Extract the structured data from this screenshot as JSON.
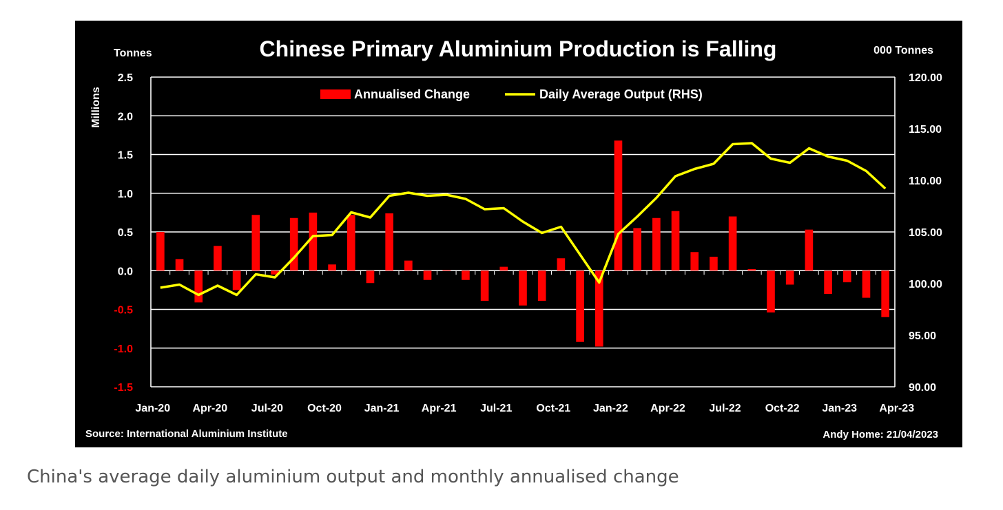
{
  "caption": "China's average daily aluminium output and monthly annualised change",
  "chart_data": {
    "type": "bar",
    "title": "Chinese Primary Aluminium Production is Falling",
    "left_unit_label": "Tonnes",
    "left_axis_multiplier_label": "Millions",
    "right_unit_label": "000 Tonnes",
    "source": "Source: International Aluminium Institute",
    "credit": "Andy Home: 21/04/2023",
    "grid": true,
    "legend_position": "top-center",
    "colors": {
      "bars": "#ff0000",
      "line": "#ffff00",
      "background": "#000000",
      "negative_ticks": "#ff0000"
    },
    "x_tick_labels": [
      "Jan-20",
      "Apr-20",
      "Jul-20",
      "Oct-20",
      "Jan-21",
      "Apr-21",
      "Jul-21",
      "Oct-21",
      "Jan-22",
      "Apr-22",
      "Jul-22",
      "Oct-22",
      "Jan-23",
      "Apr-23"
    ],
    "left_ticks": [
      "2.5",
      "2.0",
      "1.5",
      "1.0",
      "0.5",
      "0.0",
      "-0.5",
      "-1.0",
      "-1.5"
    ],
    "right_ticks": [
      "120.00",
      "115.00",
      "110.00",
      "105.00",
      "100.00",
      "95.00",
      "90.00"
    ],
    "ylim_left": [
      -1.5,
      2.5
    ],
    "ylim_right": [
      90,
      120
    ],
    "categories": [
      "Jan-20",
      "Feb-20",
      "Mar-20",
      "Apr-20",
      "May-20",
      "Jun-20",
      "Jul-20",
      "Aug-20",
      "Sep-20",
      "Oct-20",
      "Nov-20",
      "Dec-20",
      "Jan-21",
      "Feb-21",
      "Mar-21",
      "Apr-21",
      "May-21",
      "Jun-21",
      "Jul-21",
      "Aug-21",
      "Sep-21",
      "Oct-21",
      "Nov-21",
      "Dec-21",
      "Jan-22",
      "Feb-22",
      "Mar-22",
      "Apr-22",
      "May-22",
      "Jun-22",
      "Jul-22",
      "Aug-22",
      "Sep-22",
      "Oct-22",
      "Nov-22",
      "Dec-22",
      "Jan-23",
      "Feb-23",
      "Mar-23"
    ],
    "series": [
      {
        "name": "Annualised Change",
        "type": "bar",
        "axis": "left",
        "values": [
          0.5,
          0.15,
          -0.41,
          0.32,
          -0.25,
          0.72,
          -0.05,
          0.68,
          0.75,
          0.08,
          0.72,
          -0.16,
          0.74,
          0.13,
          -0.12,
          0.01,
          -0.12,
          -0.39,
          0.05,
          -0.45,
          -0.39,
          0.16,
          -0.92,
          -0.98,
          1.68,
          0.55,
          0.68,
          0.77,
          0.24,
          0.18,
          0.7,
          0.02,
          -0.54,
          -0.18,
          0.53,
          -0.3,
          -0.15,
          -0.35,
          -0.6
        ]
      },
      {
        "name": "Daily Average Output (RHS)",
        "type": "line",
        "axis": "right",
        "values": [
          99.6,
          99.9,
          98.9,
          99.8,
          98.9,
          100.9,
          100.6,
          102.5,
          104.6,
          104.7,
          106.9,
          106.4,
          108.5,
          108.8,
          108.5,
          108.6,
          108.2,
          107.2,
          107.3,
          106.0,
          104.9,
          105.5,
          102.8,
          100.1,
          104.8,
          106.5,
          108.3,
          110.4,
          111.1,
          111.6,
          113.5,
          113.6,
          112.1,
          111.7,
          113.1,
          112.3,
          111.9,
          110.9,
          109.2
        ]
      }
    ]
  }
}
